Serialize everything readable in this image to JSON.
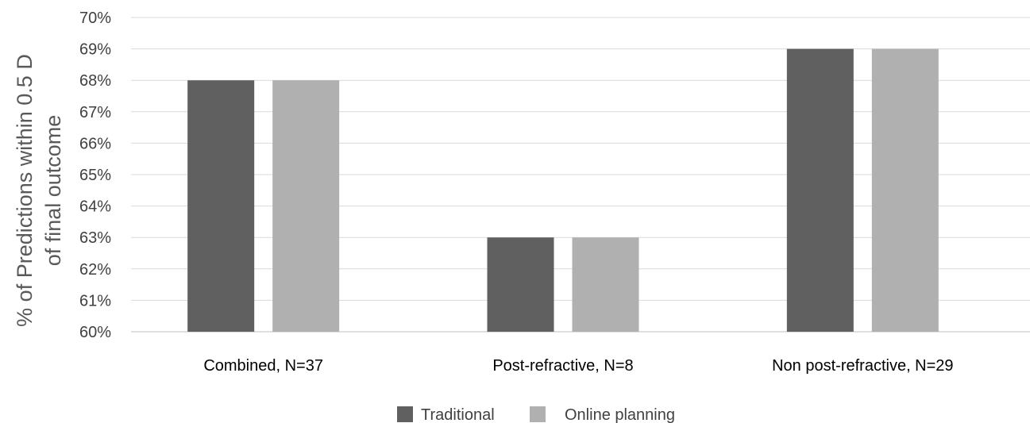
{
  "chart_data": {
    "type": "bar",
    "categories": [
      "Combined, N=37",
      "Post-refractive, N=8",
      "Non post-refractive, N=29"
    ],
    "series": [
      {
        "name": "Traditional",
        "values": [
          68,
          63,
          69
        ],
        "color": "#606060"
      },
      {
        "name": "Online planning",
        "values": [
          68,
          63,
          69
        ],
        "color": "#b0b0b0"
      }
    ],
    "ylim": [
      60,
      70
    ],
    "yticks": [
      "60%",
      "61%",
      "62%",
      "63%",
      "64%",
      "65%",
      "66%",
      "67%",
      "68%",
      "69%",
      "70%"
    ],
    "ylabel_line1": "% of Predictions within 0.5 D",
    "ylabel_line2": "of final outcome",
    "xlabel": "",
    "grid": true,
    "legend": "bottom"
  }
}
